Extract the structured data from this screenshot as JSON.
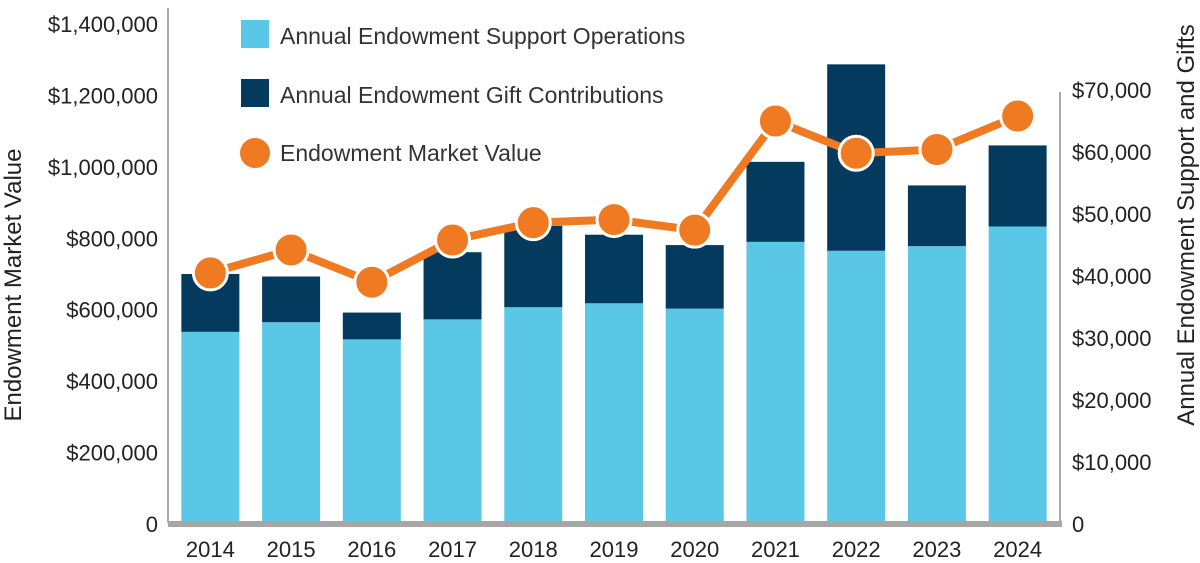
{
  "chart_data": {
    "type": "bar",
    "categories": [
      "2014",
      "2015",
      "2016",
      "2017",
      "2018",
      "2019",
      "2020",
      "2021",
      "2022",
      "2023",
      "2024"
    ],
    "series": [
      {
        "name": "Annual Endowment Support Operations",
        "axis": "left",
        "kind": "stacked-bar",
        "color": "#5bc7e6",
        "values": [
          538000,
          565000,
          517000,
          573000,
          607000,
          618000,
          603000,
          790000,
          765000,
          778000,
          833000
        ]
      },
      {
        "name": "Annual Endowment Gift Contributions",
        "axis": "left",
        "kind": "stacked-bar",
        "color": "#033a5e",
        "values": [
          162000,
          128000,
          75000,
          188000,
          228000,
          192000,
          178000,
          224000,
          522000,
          170000,
          227000
        ]
      },
      {
        "name": "Endowment Market Value",
        "axis": "right",
        "kind": "line",
        "color": "#f07a22",
        "values": [
          40500,
          44200,
          39000,
          45800,
          48600,
          49100,
          47400,
          65000,
          59800,
          60400,
          65800
        ]
      }
    ],
    "ylabel": "Endowment Market Value",
    "y2label": "Annual Endowment Support and Gifts",
    "ylim": [
      0,
      1400000
    ],
    "y2lim": [
      0,
      70000
    ],
    "yticks": [
      "0",
      "$200,000",
      "$400,000",
      "$600,000",
      "$800,000",
      "$1,000,000",
      "$1,200,000",
      "$1,400,000"
    ],
    "y2ticks": [
      "0",
      "$10,000",
      "$20,000",
      "$30,000",
      "$40,000",
      "$50,000",
      "$60,000",
      "$70,000"
    ],
    "legend_position": "top-left"
  }
}
